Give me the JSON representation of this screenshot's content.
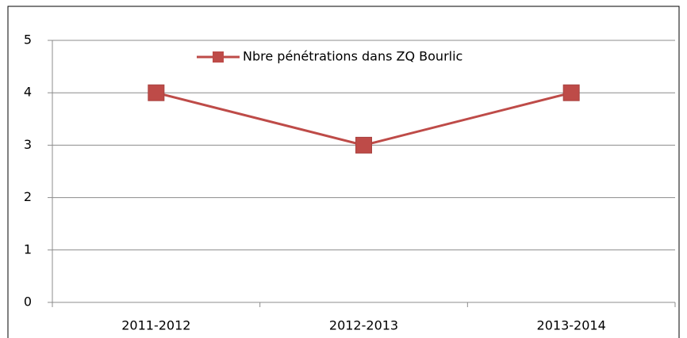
{
  "chart_data": {
    "type": "line",
    "categories": [
      "2011-2012",
      "2012-2013",
      "2013-2014"
    ],
    "series": [
      {
        "name": "Nbre pénétrations dans ZQ Bourlic",
        "color": "#be4b48",
        "values": [
          4,
          3,
          4
        ]
      }
    ],
    "ylim": [
      0,
      5
    ],
    "yticks": [
      0,
      1,
      2,
      3,
      4,
      5
    ],
    "grid": true,
    "legend": "top"
  }
}
